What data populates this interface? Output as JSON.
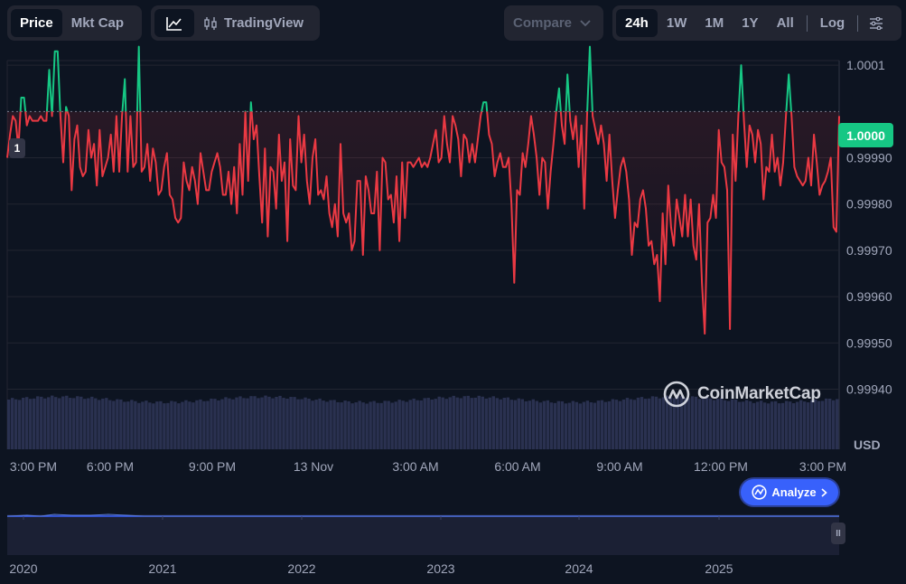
{
  "metric_tabs": {
    "price": "Price",
    "mkt_cap": "Mkt Cap",
    "active": "price"
  },
  "chart_type": {
    "line_icon": "line-chart-icon",
    "tradingview": "TradingView",
    "tradingview_icon": "candlestick-icon"
  },
  "compare": {
    "label": "Compare"
  },
  "ranges": {
    "items": [
      "24h",
      "1W",
      "1M",
      "1Y",
      "All"
    ],
    "active": "24h",
    "log": "Log",
    "settings_icon": "sliders-icon"
  },
  "reference_marker": "1",
  "current_price": "1.0000",
  "currency": "USD",
  "watermark": "CoinMarketCap",
  "analyze": {
    "label": "Analyze"
  },
  "scroll_handle": "II",
  "colors": {
    "up": "#16c784",
    "down": "#ea3943",
    "accent": "#3861fb",
    "background": "#0d1421",
    "panel": "#222531"
  },
  "chart_data": {
    "type": "line",
    "baseline": 1.0,
    "ylim": [
      0.99936,
      1.00011
    ],
    "y_ticks": [
      "1.0001",
      "0.99990",
      "0.99980",
      "0.99970",
      "0.99960",
      "0.99950",
      "0.99940"
    ],
    "x_ticks": [
      "3:00 PM",
      "6:00 PM",
      "9:00 PM",
      "13 Nov",
      "3:00 AM",
      "6:00 AM",
      "9:00 AM",
      "12:00 PM",
      "3:00 PM"
    ],
    "grid": true,
    "series": [
      {
        "values": [
          0.9999,
          0.99995,
          0.99999,
          0.99998,
          0.99992,
          1.00003,
          1.00003,
          0.99997,
          0.99999,
          0.99998,
          0.99998,
          0.99998,
          0.99999,
          0.99998,
          0.99998,
          1.00009,
          0.99999,
          1.00013,
          1.00013,
          0.99999,
          0.99989,
          1.00001,
          0.99999,
          0.99983,
          0.99994,
          0.99997,
          0.99988,
          0.99986,
          0.99987,
          0.99996,
          0.9999,
          0.99993,
          0.99984,
          0.99996,
          0.99986,
          0.99988,
          0.9999,
          0.99995,
          0.99987,
          0.99999,
          0.99987,
          0.99999,
          1.00007,
          0.99987,
          0.99999,
          0.99988,
          0.99989,
          1.00014,
          0.99987,
          0.99988,
          0.99993,
          0.99985,
          0.99992,
          0.99989,
          0.99982,
          0.99983,
          0.99988,
          0.99991,
          0.99982,
          0.99981,
          0.99977,
          0.99976,
          0.99977,
          0.99989,
          0.99985,
          0.99983,
          0.99988,
          0.99985,
          0.9998,
          0.99991,
          0.99987,
          0.99983,
          0.99983,
          0.99987,
          0.99989,
          0.99991,
          0.99988,
          0.99982,
          0.99982,
          0.99987,
          0.9998,
          0.99988,
          0.99978,
          0.99993,
          0.99982,
          1.0,
          0.99985,
          1.00002,
          0.99994,
          0.99997,
          0.99986,
          0.99976,
          0.99992,
          0.99973,
          0.99988,
          0.99987,
          0.99979,
          0.99995,
          0.99985,
          0.99989,
          0.99972,
          0.99994,
          0.99984,
          0.99983,
          0.99999,
          0.99989,
          0.99995,
          0.99985,
          0.9998,
          0.9999,
          0.99994,
          0.99982,
          0.99983,
          0.99981,
          0.99986,
          0.99978,
          0.99975,
          0.9998,
          0.99973,
          0.99993,
          0.99978,
          0.99976,
          0.99978,
          0.9997,
          0.99972,
          0.99985,
          0.99985,
          0.99969,
          0.99986,
          0.99983,
          0.99978,
          0.99978,
          0.99987,
          0.9997,
          0.9999,
          0.99989,
          0.99981,
          0.99982,
          0.99976,
          0.99986,
          0.99972,
          0.99989,
          0.99977,
          0.99989,
          0.99989,
          0.99988,
          0.99989,
          0.9999,
          0.99988,
          0.99989,
          0.99988,
          0.9999,
          0.99993,
          0.99996,
          0.99989,
          0.9999,
          0.99999,
          0.99993,
          0.99989,
          0.99999,
          0.99997,
          0.99994,
          0.99986,
          0.99995,
          0.99994,
          0.99989,
          0.99993,
          0.99989,
          0.99994,
          0.99999,
          1.00002,
          1.00002,
          0.99995,
          0.99993,
          0.99986,
          0.99989,
          0.99991,
          0.99988,
          0.99988,
          0.9999,
          0.9998,
          0.99963,
          0.99983,
          0.99982,
          0.99991,
          0.99988,
          0.99993,
          0.99999,
          0.99995,
          0.9999,
          0.99982,
          0.9999,
          0.99989,
          0.99979,
          0.99987,
          0.99993,
          1.0,
          1.00005,
          0.99997,
          0.99993,
          1.00008,
          0.99998,
          0.99994,
          0.99999,
          0.99988,
          0.99997,
          0.99979,
          0.99999,
          1.00014,
          0.99999,
          0.99996,
          0.99993,
          0.99997,
          0.99993,
          0.99985,
          0.99995,
          0.99985,
          0.99977,
          0.99983,
          0.99988,
          0.9999,
          0.99987,
          0.99981,
          0.99969,
          0.99976,
          0.99975,
          0.99981,
          0.99983,
          0.99979,
          0.99971,
          0.99972,
          0.99967,
          0.99969,
          0.99959,
          0.99978,
          0.99967,
          0.99984,
          0.99975,
          0.99971,
          0.99981,
          0.99977,
          0.99973,
          0.99982,
          0.99973,
          0.99981,
          0.99971,
          0.99968,
          0.9998,
          0.99963,
          0.99952,
          0.99976,
          0.99977,
          0.99982,
          0.99977,
          0.99996,
          0.99989,
          0.99988,
          0.99983,
          0.99953,
          0.99995,
          0.99985,
          0.99999,
          1.0001,
          0.99998,
          0.99988,
          0.99997,
          0.99995,
          0.99989,
          0.99996,
          0.99993,
          0.99981,
          0.99988,
          0.99987,
          0.99995,
          0.99987,
          0.9999,
          0.99984,
          0.99989,
          0.99999,
          1.00008,
          0.99999,
          0.99988,
          0.99986,
          0.99985,
          0.99984,
          0.99985,
          0.9999,
          0.99984,
          0.99995,
          0.99989,
          0.99982,
          0.99984,
          0.99985,
          0.99987,
          0.9999,
          0.99975,
          0.99974,
          0.99999
        ]
      }
    ],
    "navigator": {
      "x_ticks": [
        "2020",
        "2021",
        "2022",
        "2023",
        "2024",
        "2025"
      ]
    }
  }
}
